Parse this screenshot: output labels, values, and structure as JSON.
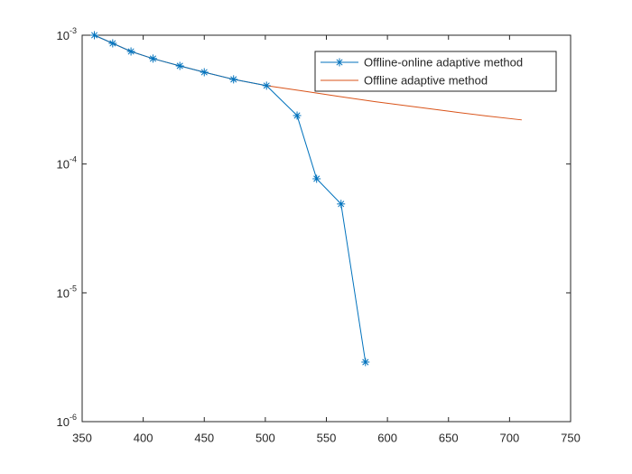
{
  "chart_data": {
    "type": "line",
    "log_y": true,
    "series": [
      {
        "name": "Offline-online adaptive method",
        "color": "#0072bd",
        "marker": "asterisk",
        "x": [
          360,
          375,
          390,
          408,
          430,
          450,
          474,
          501,
          526,
          542,
          562,
          582
        ],
        "values": [
          0.001,
          0.000865,
          0.000748,
          0.000658,
          0.000578,
          0.000516,
          0.000454,
          0.000406,
          0.000238,
          7.69e-05,
          4.9e-05,
          2.9e-06
        ]
      },
      {
        "name": "Offline adaptive method",
        "color": "#d95319",
        "marker": null,
        "x": [
          360,
          375,
          390,
          408,
          430,
          450,
          474,
          501,
          530,
          560,
          590,
          620,
          650,
          680,
          710
        ],
        "values": [
          0.001,
          0.000865,
          0.000748,
          0.000658,
          0.000578,
          0.000516,
          0.000454,
          0.000406,
          0.00037,
          0.000335,
          0.000305,
          0.00028,
          0.000257,
          0.000237,
          0.00022
        ]
      }
    ],
    "xlim": [
      350,
      750
    ],
    "xticks": [
      350,
      400,
      450,
      500,
      550,
      600,
      650,
      700,
      750
    ],
    "ylim": [
      1e-06,
      0.001
    ],
    "yticks": [
      {
        "value": 1e-06,
        "label": "10-6"
      },
      {
        "value": 1e-05,
        "label": "10-5"
      },
      {
        "value": 0.0001,
        "label": "10-4"
      },
      {
        "value": 0.001,
        "label": "10-3"
      }
    ],
    "legend": "upper right"
  }
}
